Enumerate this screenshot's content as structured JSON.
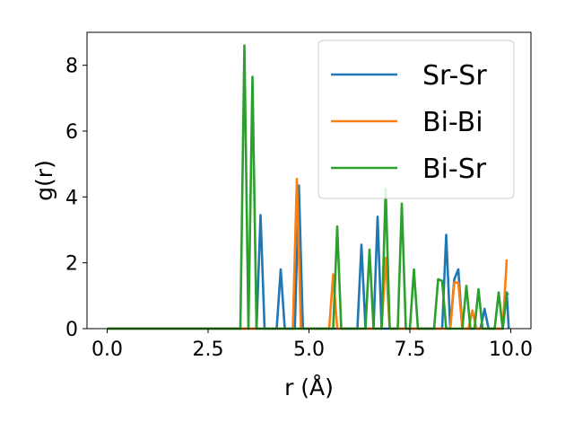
{
  "chart_data": {
    "type": "line",
    "xlabel": "r (Å)",
    "ylabel": "g(r)",
    "xlim": [
      -0.5,
      10.5
    ],
    "ylim": [
      0,
      9
    ],
    "xticks": [
      0.0,
      2.5,
      5.0,
      7.5,
      10.0
    ],
    "xtick_labels": [
      "0.0",
      "2.5",
      "5.0",
      "7.5",
      "10.0"
    ],
    "yticks": [
      0,
      2,
      4,
      6,
      8
    ],
    "ytick_labels": [
      "0",
      "2",
      "4",
      "6",
      "8"
    ],
    "grid": false,
    "legend_position": "top-right",
    "series": [
      {
        "name": "Sr-Sr",
        "color": "#1f77b4",
        "points": [
          [
            0,
            0
          ],
          [
            3.7,
            0
          ],
          [
            3.8,
            3.45
          ],
          [
            3.9,
            0
          ],
          [
            4.2,
            0
          ],
          [
            4.3,
            1.8
          ],
          [
            4.4,
            0
          ],
          [
            4.65,
            0
          ],
          [
            4.75,
            4.35
          ],
          [
            4.85,
            0
          ],
          [
            6.2,
            0
          ],
          [
            6.3,
            2.55
          ],
          [
            6.4,
            0
          ],
          [
            6.6,
            0
          ],
          [
            6.7,
            3.4
          ],
          [
            6.8,
            0
          ],
          [
            8.3,
            0
          ],
          [
            8.4,
            2.85
          ],
          [
            8.5,
            0
          ],
          [
            8.6,
            1.5
          ],
          [
            8.7,
            1.8
          ],
          [
            8.8,
            0
          ],
          [
            9.25,
            0
          ],
          [
            9.35,
            0.6
          ],
          [
            9.45,
            0
          ],
          [
            9.8,
            0
          ],
          [
            9.9,
            1.1
          ],
          [
            9.95,
            0
          ]
        ]
      },
      {
        "name": "Bi-Bi",
        "color": "#ff7f0e",
        "points": [
          [
            0,
            0
          ],
          [
            4.6,
            0
          ],
          [
            4.7,
            4.55
          ],
          [
            4.8,
            0
          ],
          [
            5.5,
            0
          ],
          [
            5.6,
            1.65
          ],
          [
            5.7,
            0
          ],
          [
            6.8,
            0
          ],
          [
            6.9,
            2.15
          ],
          [
            7.0,
            0
          ],
          [
            8.5,
            0
          ],
          [
            8.6,
            1.4
          ],
          [
            8.7,
            1.4
          ],
          [
            8.8,
            0
          ],
          [
            8.95,
            0
          ],
          [
            9.05,
            0.55
          ],
          [
            9.15,
            0
          ],
          [
            9.8,
            0
          ],
          [
            9.9,
            2.1
          ]
        ]
      },
      {
        "name": "Bi-Sr",
        "color": "#2ca02c",
        "points": [
          [
            0,
            0
          ],
          [
            3.3,
            0
          ],
          [
            3.4,
            8.6
          ],
          [
            3.5,
            0
          ],
          [
            3.5,
            0
          ],
          [
            3.6,
            7.65
          ],
          [
            3.7,
            0
          ],
          [
            5.6,
            0
          ],
          [
            5.7,
            3.1
          ],
          [
            5.8,
            0
          ],
          [
            6.4,
            0
          ],
          [
            6.5,
            2.4
          ],
          [
            6.6,
            0
          ],
          [
            6.8,
            0
          ],
          [
            6.9,
            4.25
          ],
          [
            7.0,
            0
          ],
          [
            7.2,
            0
          ],
          [
            7.3,
            3.8
          ],
          [
            7.4,
            0
          ],
          [
            7.5,
            0
          ],
          [
            7.6,
            1.8
          ],
          [
            7.7,
            0
          ],
          [
            8.1,
            0
          ],
          [
            8.2,
            1.5
          ],
          [
            8.3,
            1.45
          ],
          [
            8.4,
            0
          ],
          [
            8.8,
            0
          ],
          [
            8.9,
            1.3
          ],
          [
            9.0,
            0
          ],
          [
            9.1,
            0
          ],
          [
            9.2,
            1.2
          ],
          [
            9.3,
            0
          ],
          [
            9.6,
            0
          ],
          [
            9.7,
            1.1
          ],
          [
            9.8,
            0
          ],
          [
            9.9,
            1.05
          ],
          [
            9.95,
            1.05
          ]
        ]
      }
    ]
  }
}
